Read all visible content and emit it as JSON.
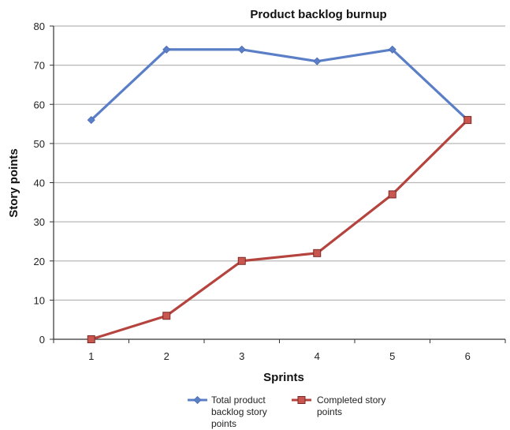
{
  "chart_data": {
    "type": "line",
    "title": "Product backlog burnup",
    "xlabel": "Sprints",
    "ylabel": "Story points",
    "x": [
      1,
      2,
      3,
      4,
      5,
      6
    ],
    "ylim": [
      0,
      80
    ],
    "yticks": [
      0,
      10,
      20,
      30,
      40,
      50,
      60,
      70,
      80
    ],
    "grid": true,
    "legend_position": "bottom",
    "series": [
      {
        "name": "Total product backlog story points",
        "legend_lines": [
          "Total product",
          "backlog story",
          "points"
        ],
        "values": [
          56,
          74,
          74,
          71,
          74,
          56
        ],
        "color": "#5b7fc7",
        "marker": "diamond"
      },
      {
        "name": "Completed story points",
        "legend_lines": [
          "Completed story",
          "points"
        ],
        "values": [
          0,
          6,
          20,
          22,
          37,
          56
        ],
        "color": "#b5443f",
        "marker": "square"
      }
    ]
  }
}
